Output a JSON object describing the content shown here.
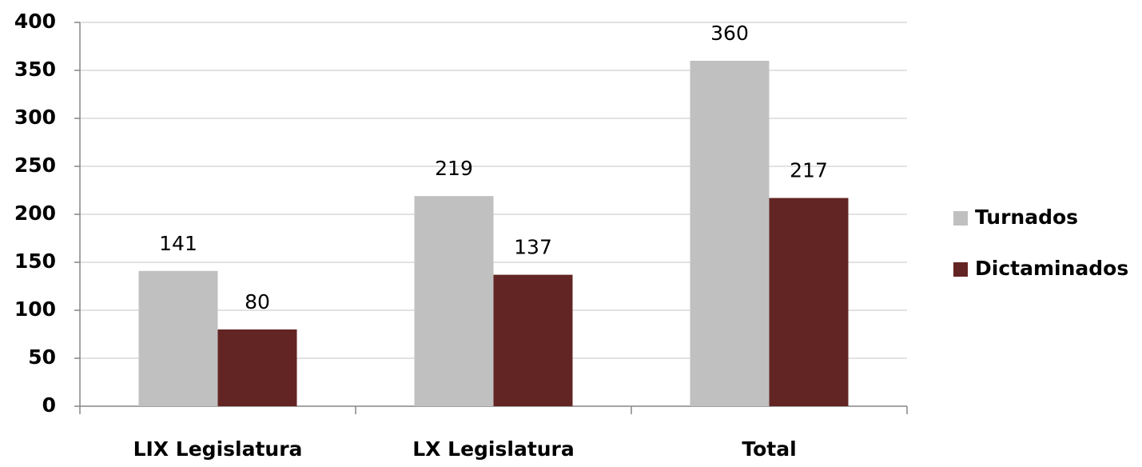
{
  "chart_data": {
    "type": "bar",
    "categories": [
      "LIX Legislatura",
      "LX Legislatura",
      "Total"
    ],
    "series": [
      {
        "name": "Turnados",
        "color": "#c0c0c0",
        "values": [
          141,
          219,
          360
        ]
      },
      {
        "name": "Dictaminados",
        "color": "#632523",
        "values": [
          80,
          137,
          217
        ]
      }
    ],
    "ylim": [
      0,
      400
    ],
    "yticks": [
      0,
      50,
      100,
      150,
      200,
      250,
      300,
      350,
      400
    ],
    "grid": true,
    "legend": "right"
  }
}
